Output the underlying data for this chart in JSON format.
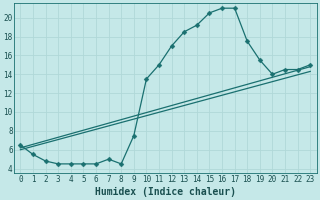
{
  "xlabel": "Humidex (Indice chaleur)",
  "bg_color": "#c5e8e8",
  "line_color": "#1a7070",
  "grid_color": "#b0d8d8",
  "xlim": [
    -0.5,
    23.5
  ],
  "ylim": [
    3.5,
    21.5
  ],
  "xticks": [
    0,
    1,
    2,
    3,
    4,
    5,
    6,
    7,
    8,
    9,
    10,
    11,
    12,
    13,
    14,
    15,
    16,
    17,
    18,
    19,
    20,
    21,
    22,
    23
  ],
  "yticks": [
    4,
    6,
    8,
    10,
    12,
    14,
    16,
    18,
    20
  ],
  "line1_x": [
    0,
    1,
    2,
    3,
    4,
    5,
    6,
    7,
    8,
    9,
    10,
    11,
    12,
    13,
    14,
    15,
    16,
    17,
    18,
    19,
    20,
    21,
    22,
    23
  ],
  "line1_y": [
    6.5,
    5.5,
    4.8,
    4.5,
    4.5,
    4.5,
    4.5,
    5.0,
    4.5,
    7.5,
    13.5,
    15.0,
    17.0,
    18.5,
    19.2,
    20.5,
    21.0,
    21.0,
    17.5,
    15.5,
    14.0,
    14.5,
    14.5,
    15.0
  ],
  "line2_x": [
    0,
    23
  ],
  "line2_y": [
    6.2,
    14.8
  ],
  "line3_x": [
    0,
    23
  ],
  "line3_y": [
    6.0,
    14.3
  ],
  "markersize": 2.5,
  "linewidth": 0.9,
  "font_color": "#1a5050",
  "xlabel_fontsize": 7,
  "tick_fontsize": 5.5
}
